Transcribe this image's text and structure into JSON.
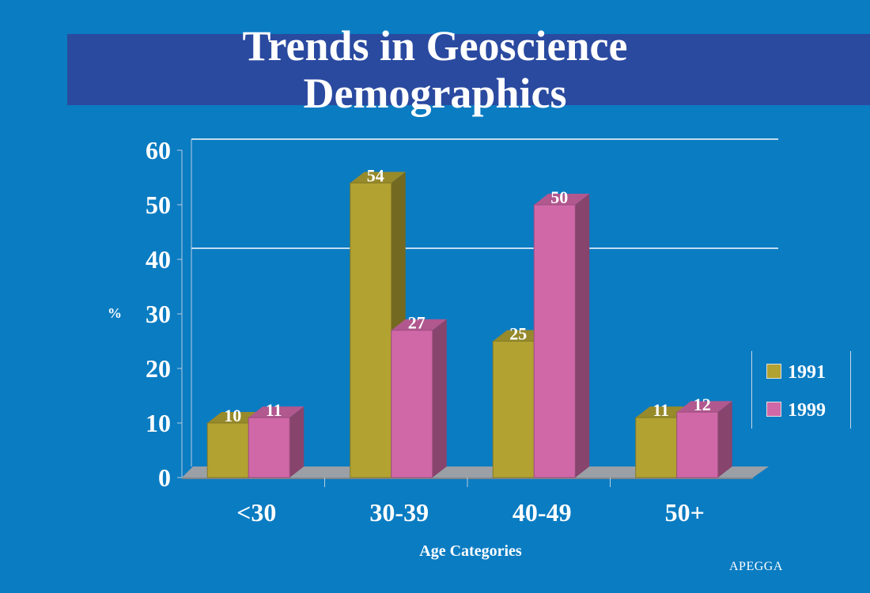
{
  "source_label": "APEGGA",
  "colors": {
    "series_1991": "#b1a232",
    "series_1999": "#d068a8",
    "background": "#0a7cc2",
    "title_band": "#2a4aa0"
  },
  "chart_data": {
    "type": "bar",
    "title": "Trends in Geoscience Demographics",
    "title_lines": [
      "Trends in Geoscience",
      "Demographics"
    ],
    "xlabel": "Age Categories",
    "ylabel": "%",
    "categories": [
      "<30",
      "30-39",
      "40-49",
      "50+"
    ],
    "series": [
      {
        "name": "1991",
        "values": [
          10,
          54,
          25,
          11
        ]
      },
      {
        "name": "1999",
        "values": [
          11,
          27,
          50,
          12
        ]
      }
    ],
    "ylim": [
      0,
      60
    ],
    "yticks": [
      0,
      10,
      20,
      30,
      40,
      50,
      60
    ],
    "legend": "right",
    "style": "3d-column"
  }
}
